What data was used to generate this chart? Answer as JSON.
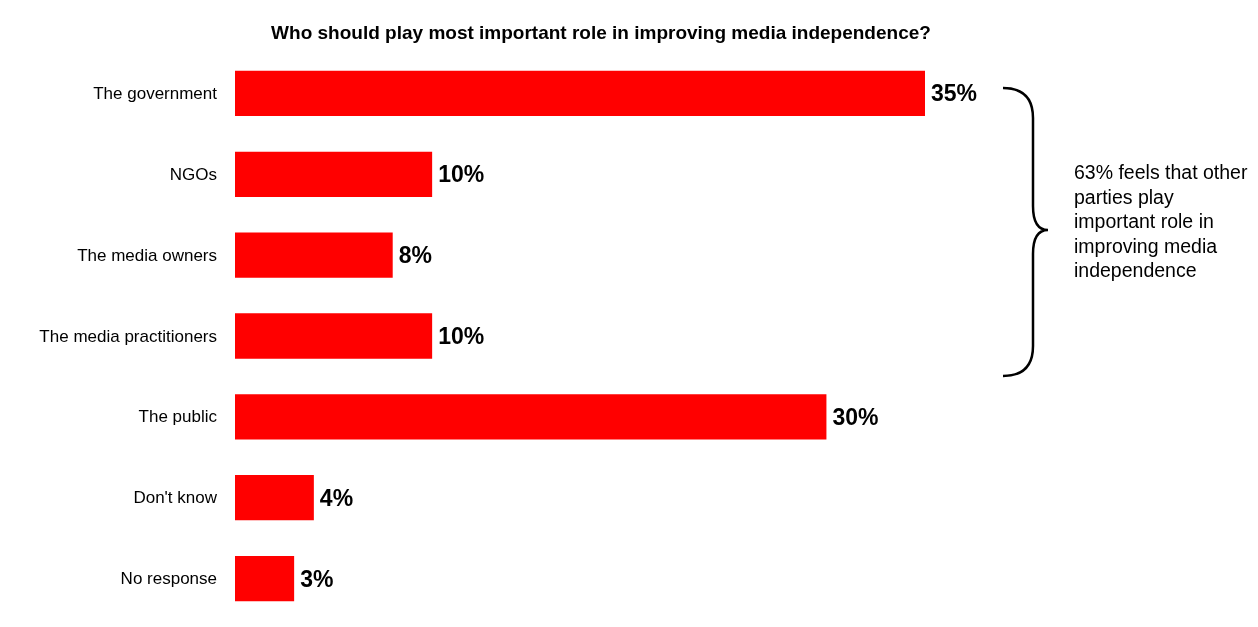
{
  "chart_data": {
    "type": "bar",
    "orientation": "horizontal",
    "title": "Who should play most important role in improving media independence?",
    "categories": [
      "The government",
      "NGOs",
      "The media owners",
      "The media practitioners",
      "The public",
      "Don't know",
      "No response"
    ],
    "values": [
      35,
      10,
      8,
      10,
      30,
      4,
      3
    ],
    "value_labels": [
      "35%",
      "10%",
      "8%",
      "10%",
      "30%",
      "4%",
      "3%"
    ],
    "color": "#ff0000",
    "annotations": [
      "63% feels that other parties play important role in improving media independence"
    ]
  }
}
